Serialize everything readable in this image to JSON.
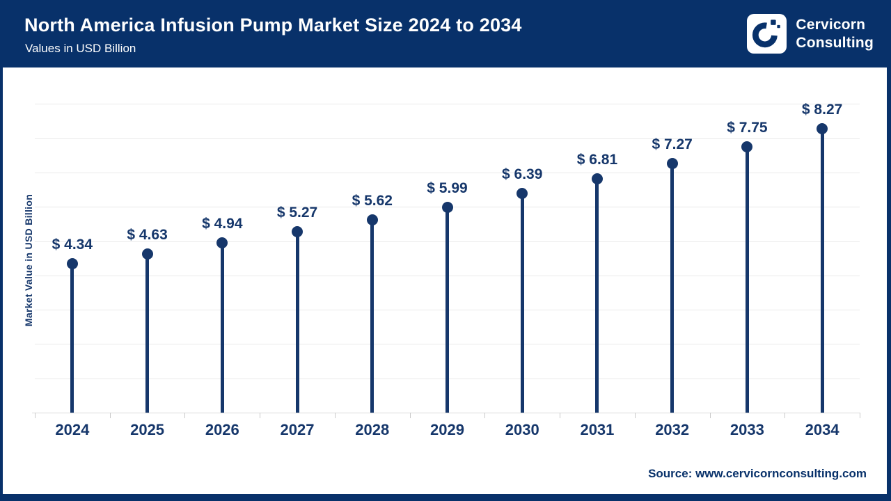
{
  "header": {
    "title": "North America Infusion Pump Market Size 2024 to 2034",
    "subtitle": "Values in USD Billion",
    "brand": {
      "line1": "Cervicorn",
      "line2": "Consulting",
      "logo_icon": "cervicorn-c-mark"
    }
  },
  "chart_data": {
    "type": "scatter",
    "style": "lollipop",
    "title": "North America Infusion Pump Market Size 2024 to 2034",
    "subtitle": "Values in USD Billion",
    "categories": [
      "2024",
      "2025",
      "2026",
      "2027",
      "2028",
      "2029",
      "2030",
      "2031",
      "2032",
      "2033",
      "2034"
    ],
    "values": [
      4.34,
      4.63,
      4.94,
      5.27,
      5.62,
      5.99,
      6.39,
      6.81,
      7.27,
      7.75,
      8.27
    ],
    "value_labels": [
      "$ 4.34",
      "$ 4.63",
      "$ 4.94",
      "$ 5.27",
      "$ 5.62",
      "$ 5.99",
      "$ 6.39",
      "$ 6.81",
      "$ 7.27",
      "$ 7.75",
      "$ 8.27"
    ],
    "xlabel": "",
    "ylabel": "Market Value in USD Billion",
    "ylim": [
      0,
      9.8
    ],
    "grid": true,
    "grid_interval": 1,
    "legend": "none",
    "y_tick_labels_visible": false
  },
  "footer": {
    "source": "Source: www.cervicornconsulting.com"
  },
  "colors": {
    "header_navy": "#08316a",
    "chart_navy": "#16376b",
    "gridline": "#e9e9e9",
    "axis_line": "#d9d9d9",
    "tick": "#c9c9c9",
    "background": "#ffffff",
    "logo_background": "#ffffff"
  }
}
